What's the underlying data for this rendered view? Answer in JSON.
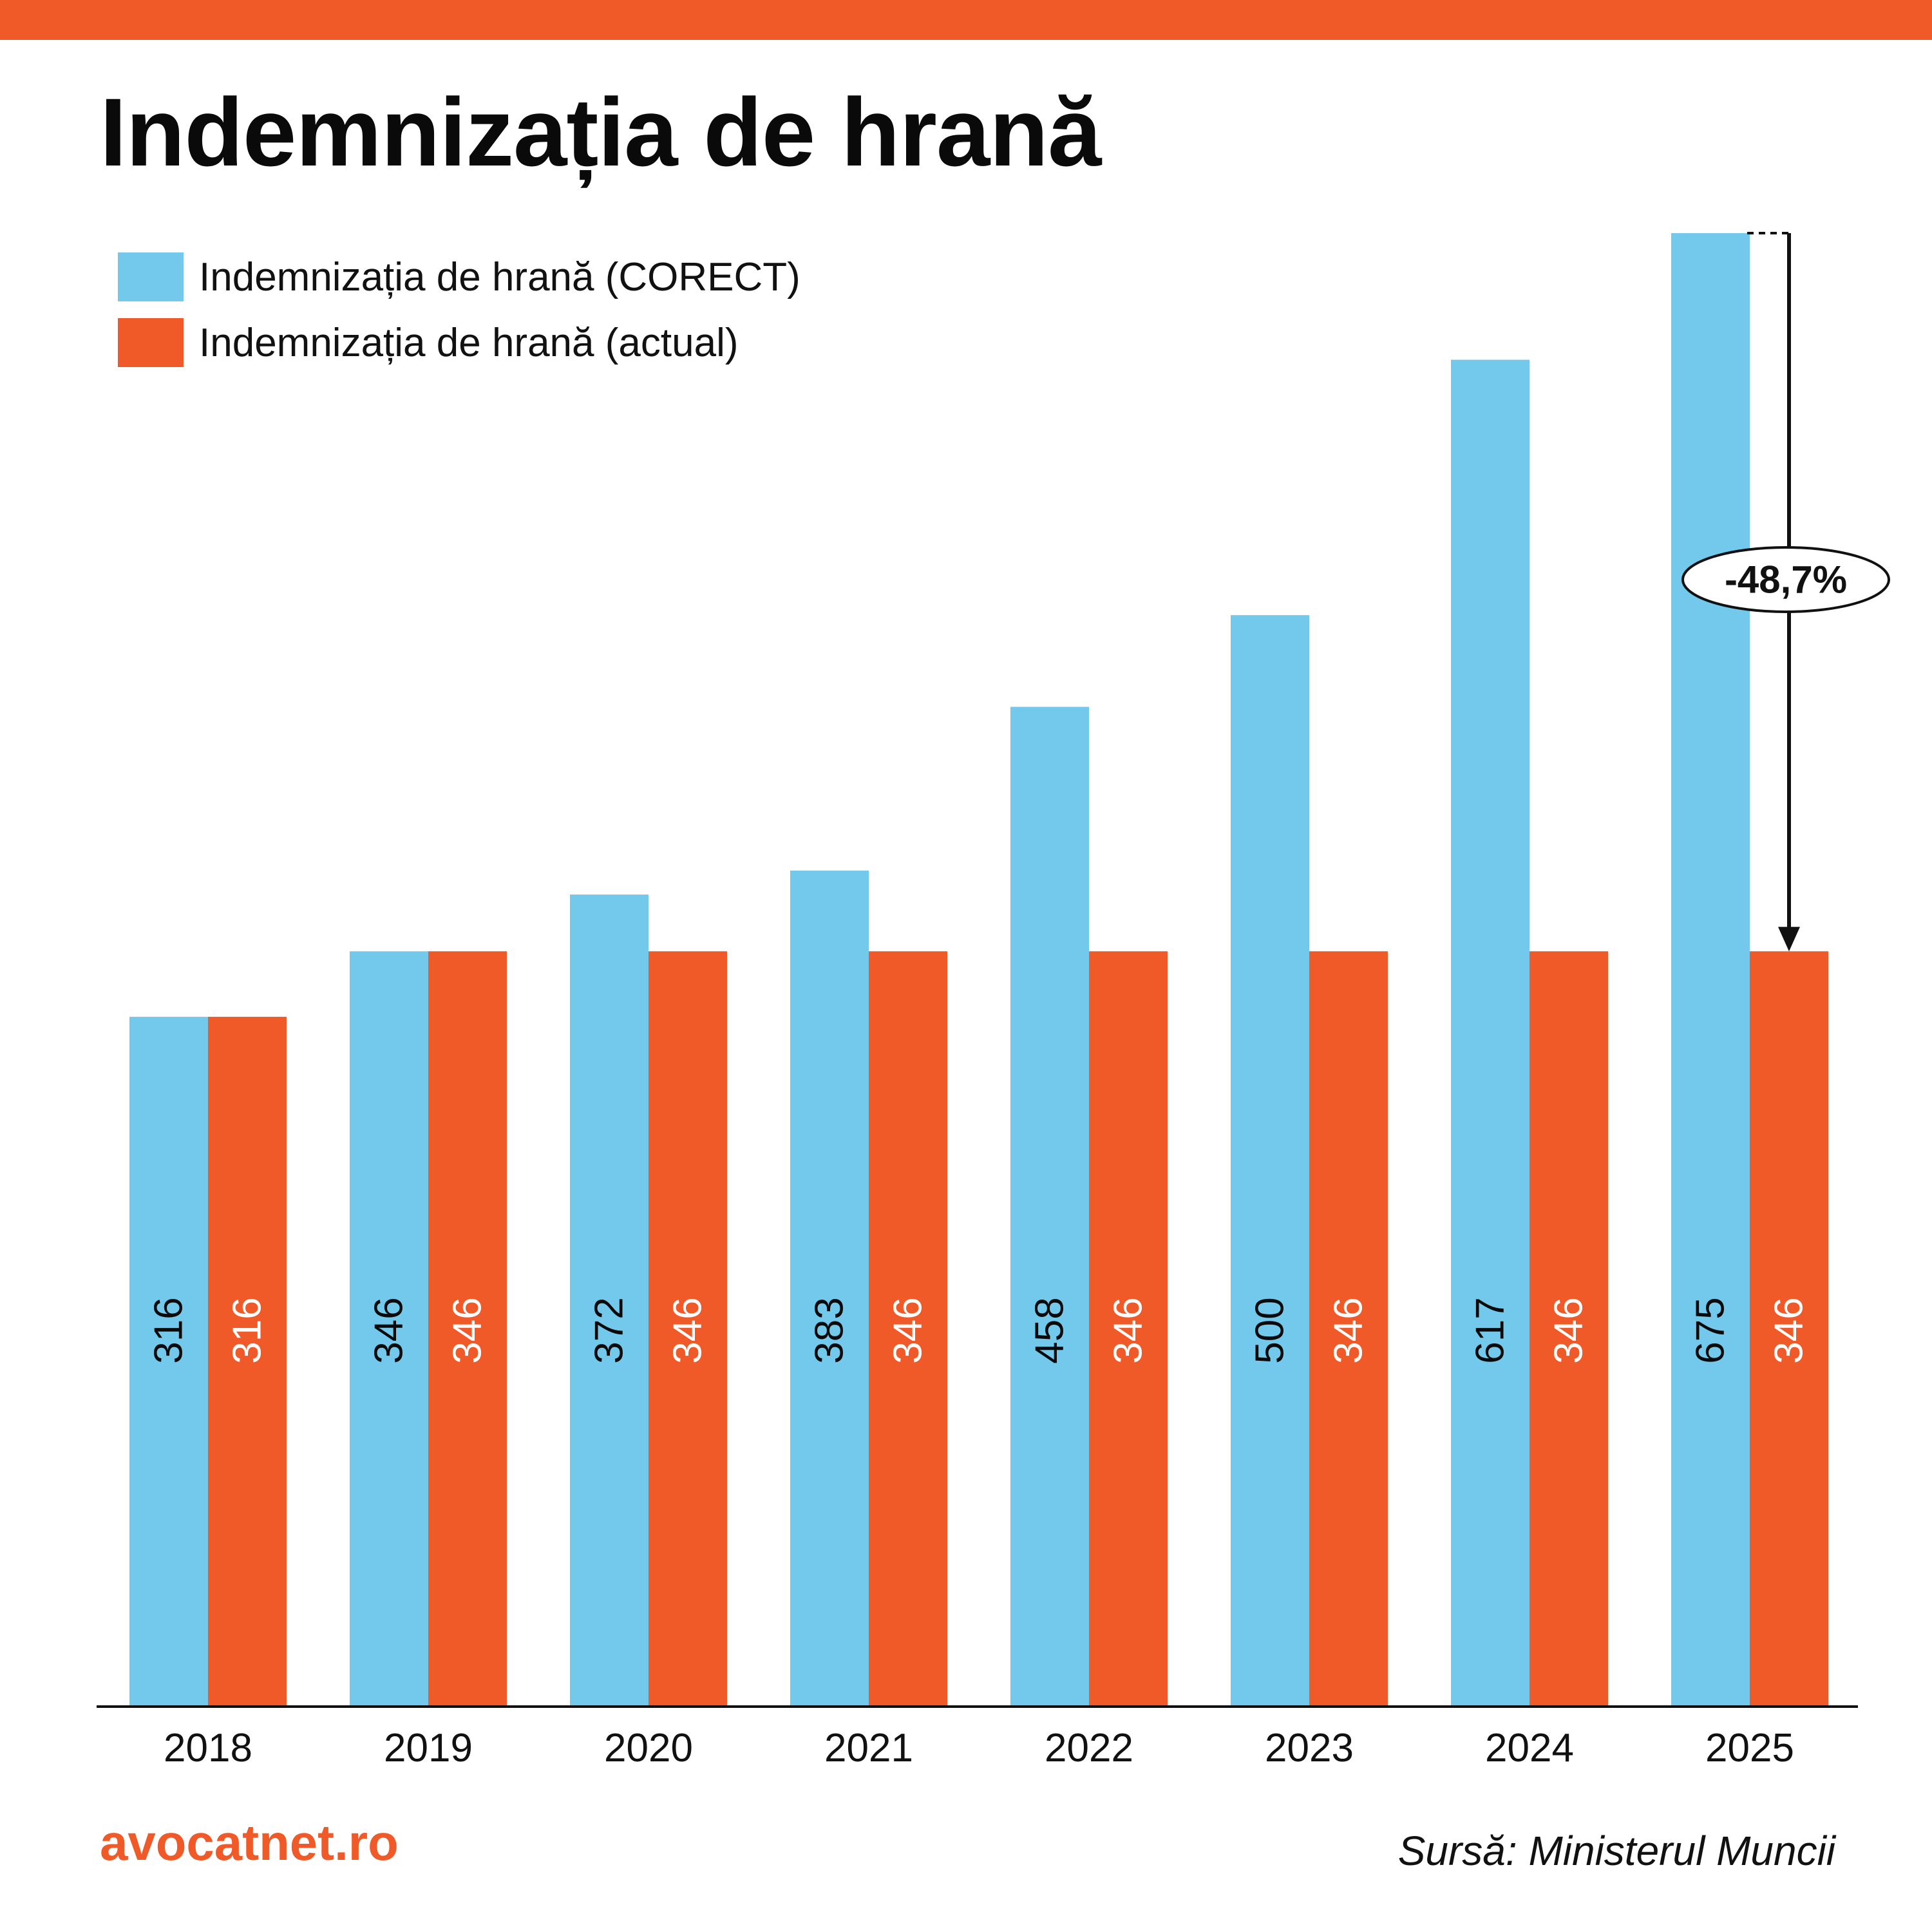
{
  "title": "Indemnizația de hrană",
  "brand": "avocatnet.ro",
  "source": "Sursă: Ministerul Muncii",
  "colors": {
    "accent": "#f05a28",
    "corect": "#72c9eb",
    "actual": "#f05a28"
  },
  "chart_data": {
    "type": "bar",
    "title": "Indemnizația de hrană",
    "xlabel": "",
    "ylabel": "",
    "ylim": [
      0,
      675
    ],
    "grid": false,
    "legend_position": "top-left",
    "categories": [
      "2018",
      "2019",
      "2020",
      "2021",
      "2022",
      "2023",
      "2024",
      "2025"
    ],
    "series": [
      {
        "name": "Indemnizația de hrană (CORECT)",
        "color": "#72c9eb",
        "values": [
          316,
          346,
          372,
          383,
          458,
          500,
          617,
          675
        ]
      },
      {
        "name": "Indemnizația de hrană (actual)",
        "color": "#f05a28",
        "values": [
          316,
          346,
          346,
          346,
          346,
          346,
          346,
          346
        ]
      }
    ],
    "annotation": {
      "text": "-48,7%",
      "category": "2025",
      "from": 675,
      "to": 346
    }
  }
}
